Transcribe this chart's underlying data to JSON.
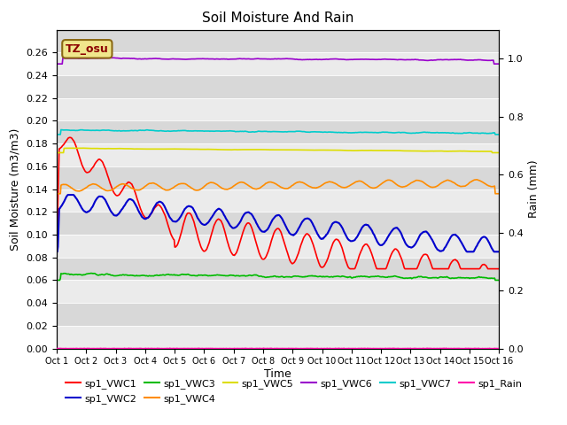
{
  "title": "Soil Moisture And Rain",
  "xlabel": "Time",
  "ylabel_left": "Soil Moisture (m3/m3)",
  "ylabel_right": "Rain (mm)",
  "xlim": [
    0,
    15
  ],
  "ylim_left": [
    0.0,
    0.28
  ],
  "ylim_right": [
    0.0,
    1.1
  ],
  "x_tick_labels": [
    "Oct 1",
    "Oct 2",
    "Oct 3",
    "Oct 4",
    "Oct 5",
    "Oct 6",
    "Oct 7",
    "Oct 8",
    "Oct 9",
    "Oct 10",
    "Oct 11",
    "Oct 12",
    "Oct 13",
    "Oct 14",
    "Oct 15",
    "Oct 16"
  ],
  "yticks_left": [
    0.0,
    0.02,
    0.04,
    0.06,
    0.08,
    0.1,
    0.12,
    0.14,
    0.16,
    0.18,
    0.2,
    0.22,
    0.24,
    0.26
  ],
  "yticks_right": [
    0.0,
    0.2,
    0.4,
    0.6,
    0.8,
    1.0
  ],
  "annotation_text": "TZ_osu",
  "annotation_box_color": "#f0e68c",
  "annotation_border_color": "#8B6914",
  "bg_dark": "#d8d8d8",
  "bg_light": "#ebebeb",
  "series": {
    "sp1_VWC1": {
      "color": "#ff0000",
      "linewidth": 1.2
    },
    "sp1_VWC2": {
      "color": "#0000cd",
      "linewidth": 1.5
    },
    "sp1_VWC3": {
      "color": "#00bb00",
      "linewidth": 1.2
    },
    "sp1_VWC4": {
      "color": "#ff8c00",
      "linewidth": 1.2
    },
    "sp1_VWC5": {
      "color": "#dddd00",
      "linewidth": 1.2
    },
    "sp1_VWC6": {
      "color": "#9900cc",
      "linewidth": 1.2
    },
    "sp1_VWC7": {
      "color": "#00cccc",
      "linewidth": 1.2
    },
    "sp1_Rain": {
      "color": "#ff00aa",
      "linewidth": 1.0
    }
  }
}
